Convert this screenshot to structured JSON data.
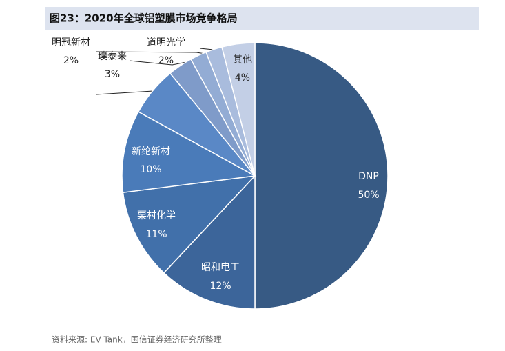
{
  "chart_data": {
    "type": "pie",
    "title": "图23：2020年全球铝塑膜市场竞争格局",
    "source": "资料来源: EV Tank，国信证券经济研究所整理",
    "categories": [
      "DNP",
      "昭和电工",
      "栗村化学",
      "新纶新材",
      null,
      "璞泰来",
      "明冠新材",
      "道明光学",
      "其他"
    ],
    "values": [
      50,
      12,
      11,
      10,
      6,
      3,
      2,
      2,
      4
    ],
    "value_labels": [
      "50%",
      "12%",
      "11%",
      "10%",
      null,
      "3%",
      "2%",
      "2%",
      "4%"
    ],
    "colors": [
      "#375a84",
      "#3c659a",
      "#4170aa",
      "#4a7bb9",
      "#5a88c6",
      "#7f9bc9",
      "#93acd4",
      "#a9bcdd",
      "#c3cfe6"
    ]
  }
}
